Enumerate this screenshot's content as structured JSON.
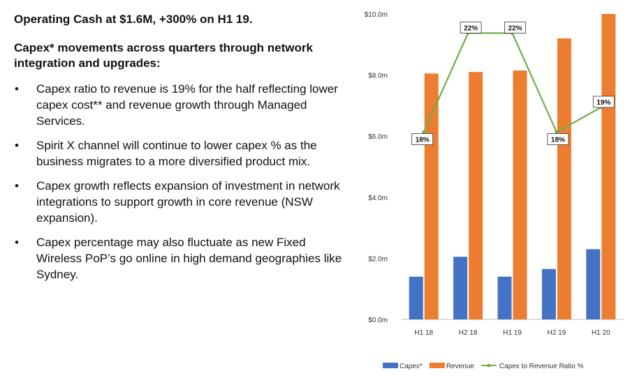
{
  "headline": "Operating Cash at $1.6M, +300% on H1 19.",
  "subheading": "Capex* movements across quarters through network integration and upgrades:",
  "bullets": [
    "Capex ratio to revenue is 19% for the half reflecting lower capex cost** and revenue growth through Managed Services.",
    "Spirit X channel will continue to lower capex % as the business migrates to a more diversified product mix.",
    "Capex growth reflects expansion of investment in network integrations to support growth in core revenue (NSW expansion).",
    "Capex percentage may also fluctuate as new Fixed Wireless PoP’s go online in high demand geographies like Sydney."
  ],
  "bullet_symbol": "•",
  "chart_data": {
    "type": "bar",
    "categories": [
      "H1 18",
      "H2 18",
      "H1 19",
      "H2 19",
      "H1 20"
    ],
    "series": [
      {
        "name": "Capex*",
        "type": "bar",
        "color": "#4472c4",
        "values": [
          1.4,
          2.05,
          1.4,
          1.65,
          2.3
        ]
      },
      {
        "name": "Revenue",
        "type": "bar",
        "color": "#ed7d31",
        "values": [
          8.05,
          8.1,
          8.15,
          9.2,
          10.0
        ]
      },
      {
        "name": "Capex to Revenue Ratio %",
        "type": "line",
        "color": "#70ad47",
        "values": [
          18,
          22,
          22,
          18,
          19
        ],
        "labels": [
          "18%",
          "22%",
          "22%",
          "18%",
          "19%"
        ]
      }
    ],
    "y_ticks": [
      "$0.0m",
      "$2.0m",
      "$4.0m",
      "$6.0m",
      "$8.0m",
      "$10.0m"
    ],
    "ylim": [
      0,
      10
    ],
    "grid": false,
    "legend_position": "bottom"
  }
}
